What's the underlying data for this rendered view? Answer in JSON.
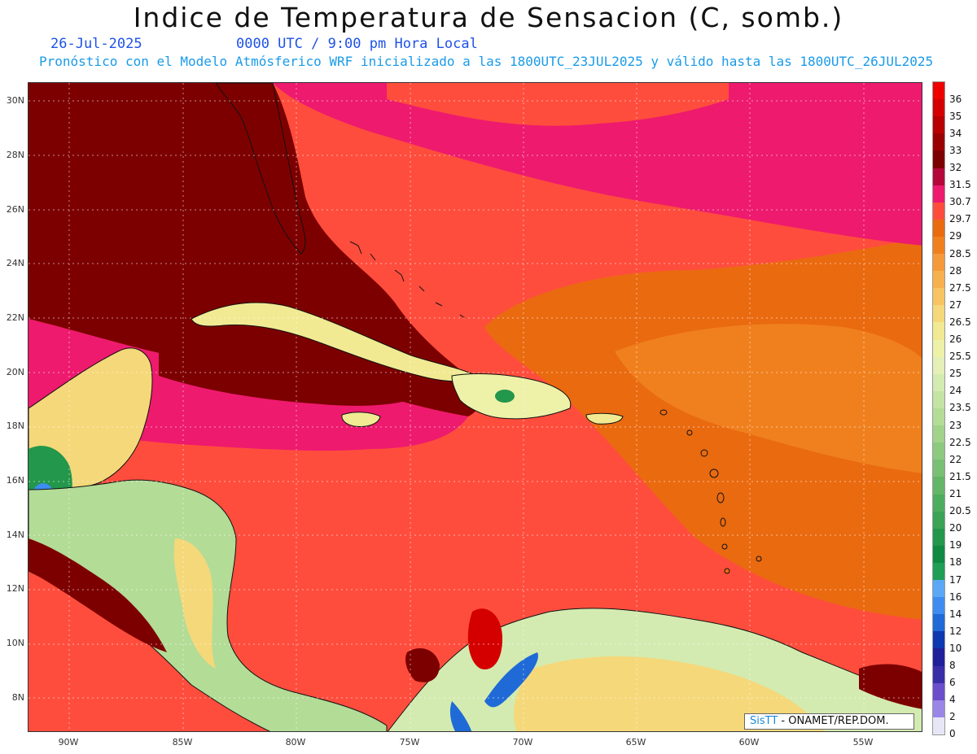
{
  "header": {
    "title": "Indice de Temperatura de Sensacion (C, somb.)",
    "date": "26-Jul-2025",
    "time": "0000 UTC / 9:00 pm Hora Local",
    "model_line": "Pronóstico con el Modelo Atmósferico WRF inicializado a las 1800UTC_23JUL2025 y válido hasta las  1800UTC_26JUL2025"
  },
  "axes": {
    "lat_labels": [
      "30N",
      "28N",
      "26N",
      "24N",
      "22N",
      "20N",
      "18N",
      "16N",
      "14N",
      "12N",
      "10N",
      "8N"
    ],
    "lon_labels": [
      "90W",
      "85W",
      "80W",
      "75W",
      "70W",
      "65W",
      "60W",
      "55W"
    ]
  },
  "colorbar": {
    "levels": [
      "36",
      "35",
      "34",
      "33",
      "32",
      "31.5",
      "30.7",
      "29.7",
      "29",
      "28.5",
      "28",
      "27.5",
      "27",
      "26.5",
      "26",
      "25.5",
      "25",
      "24",
      "23.5",
      "23",
      "22.5",
      "22",
      "21.5",
      "21",
      "20.5",
      "20",
      "19",
      "18",
      "17",
      "16",
      "14",
      "12",
      "10",
      "8",
      "6",
      "4",
      "2",
      "0"
    ],
    "colors": [
      "#ee0000",
      "#d40000",
      "#b80000",
      "#9a0000",
      "#7d0000",
      "#b5073a",
      "#ee1a6e",
      "#ff4d3d",
      "#ea6a10",
      "#f0801e",
      "#f59a3a",
      "#f7b04e",
      "#f7c463",
      "#f5d87a",
      "#f1ea92",
      "#eef1a8",
      "#e4f0b8",
      "#d3ebb0",
      "#c3e4a3",
      "#b3dc96",
      "#a1d38a",
      "#8dc97e",
      "#78c073",
      "#63b668",
      "#4eac5e",
      "#3aa355",
      "#23974b",
      "#0e8a42",
      "#1f9e56",
      "#5aa8f5",
      "#3e8cf0",
      "#1f6ad6",
      "#0d3ab0",
      "#20209a",
      "#3a2ea8",
      "#6a4ecc",
      "#9a86e6",
      "#e6e6f6"
    ]
  },
  "regions": [
    {
      "name": "Florida",
      "color": "#7d0000"
    },
    {
      "name": "Gulf of Mexico",
      "color": "#7d0000"
    },
    {
      "name": "Cuba",
      "color": "#f1ea92"
    },
    {
      "name": "Hispaniola",
      "color": "#eef1a8"
    },
    {
      "name": "Jamaica",
      "color": "#f1ea92"
    },
    {
      "name": "Puerto Rico",
      "color": "#f1ea92"
    },
    {
      "name": "Central America",
      "color": "#b3dc96"
    },
    {
      "name": "Yucatan",
      "color": "#f5d87a"
    },
    {
      "name": "South America",
      "color": "#d3ebb0"
    },
    {
      "name": "Caribbean Sea",
      "color": "#ff4d3d"
    },
    {
      "name": "Atlantic Ocean",
      "color": "#ea6a10"
    }
  ],
  "credit": {
    "brand": "SisTT",
    "text": " - ONAMET/REP.DOM."
  }
}
